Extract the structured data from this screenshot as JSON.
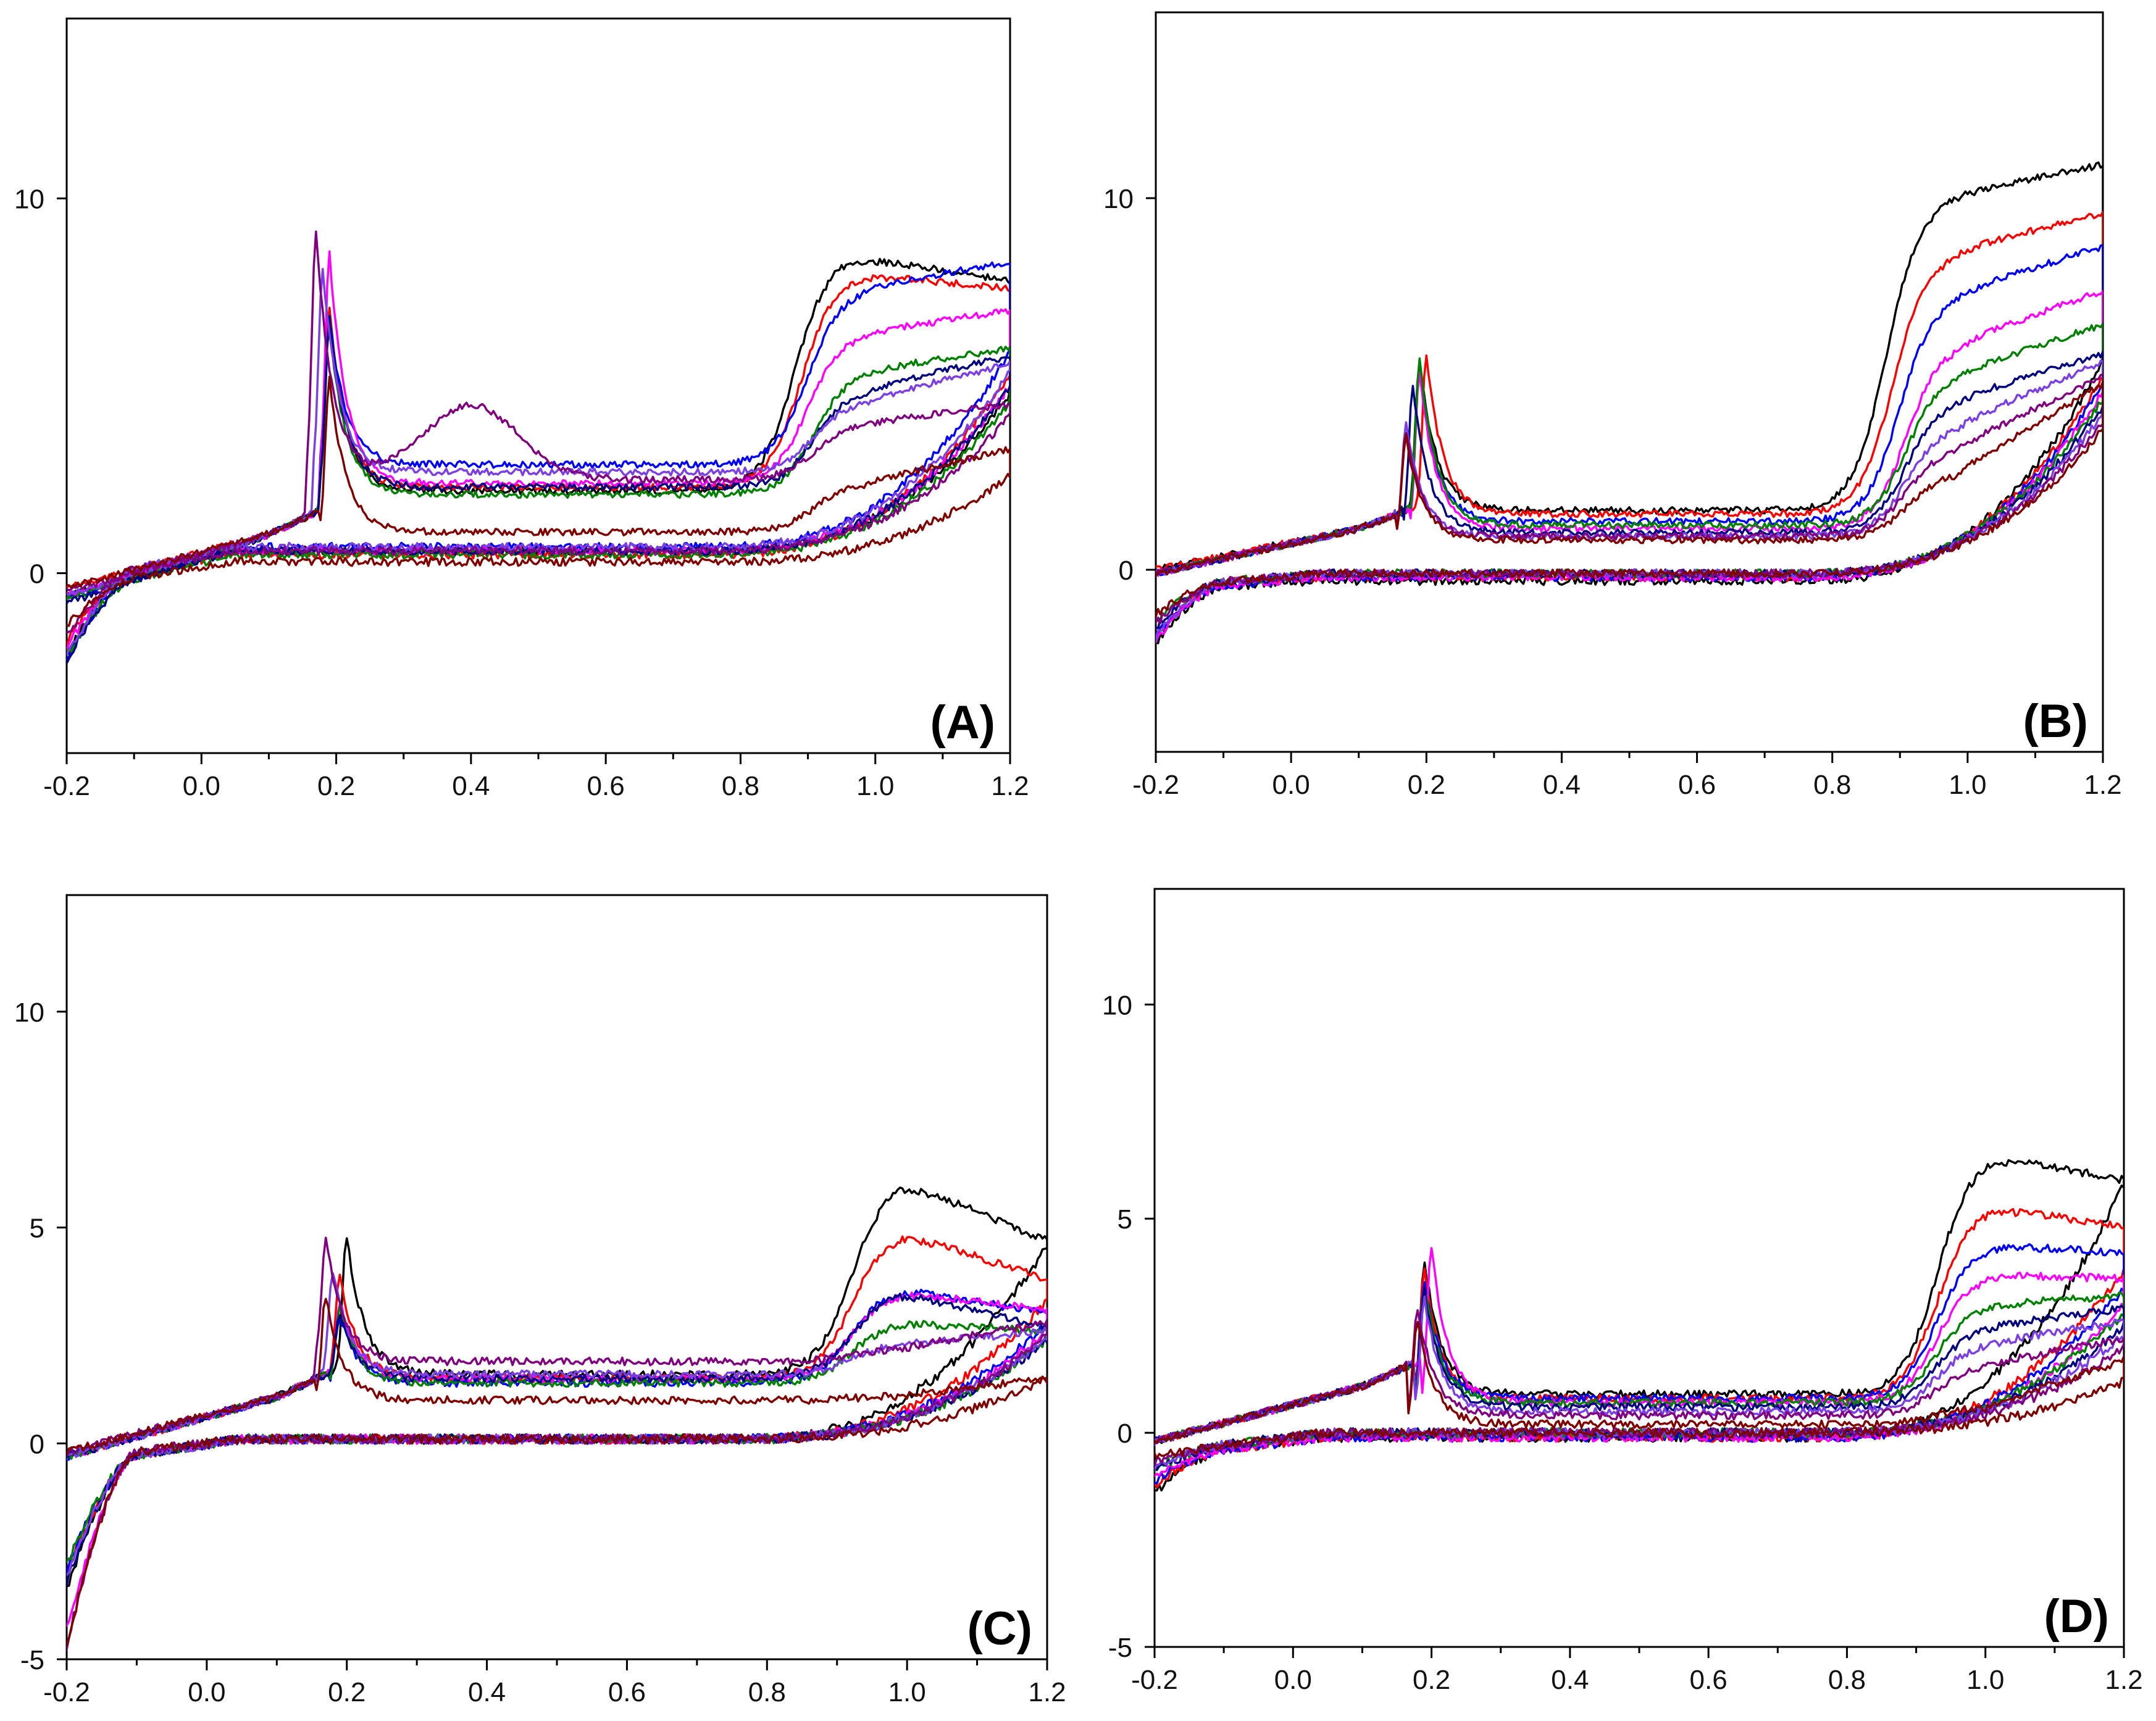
{
  "chart_data": [
    {
      "type": "line",
      "label": "(A)",
      "x_ticks": [
        "-0.2",
        "0.0",
        "0.2",
        "0.4",
        "0.6",
        "0.8",
        "1.0",
        "1.2"
      ],
      "y_ticks": [
        "0",
        "10"
      ],
      "xlim": [
        -0.2,
        1.2
      ],
      "ylim": [
        -4.8,
        14.8
      ],
      "series": [
        {
          "name": "black",
          "color": "#000000",
          "peak1": [
            0.19,
            7.0
          ],
          "floor": 2.2,
          "peak2": [
            0.95,
            8.5
          ],
          "end_fwd": 7.8,
          "end_rev": 4.8,
          "rev_mid": 0.6,
          "start_val": -0.6,
          "low": -2.6
        },
        {
          "name": "red",
          "color": "#ff0000",
          "peak1": [
            0.19,
            7.0
          ],
          "floor": 2.3,
          "peak2": [
            0.96,
            8.0
          ],
          "end_fwd": 7.6,
          "end_rev": 5.3,
          "rev_mid": 0.5,
          "start_val": -0.4,
          "low": -2.2
        },
        {
          "name": "blue",
          "color": "#0000ff",
          "peak1": [
            0.19,
            6.8
          ],
          "floor": 2.9,
          "peak2": [
            0.97,
            7.6
          ],
          "end_fwd": 8.3,
          "end_rev": 5.9,
          "rev_mid": 0.7,
          "start_val": -0.7,
          "low": -2.9
        },
        {
          "name": "magenta",
          "color": "#ff00ff",
          "peak1": [
            0.19,
            8.5
          ],
          "floor": 2.4,
          "peak2": [
            0.97,
            6.4
          ],
          "end_fwd": 7.0,
          "end_rev": 5.0,
          "rev_mid": 0.6,
          "start_val": -0.6,
          "low": -2.4
        },
        {
          "name": "green",
          "color": "#008000",
          "peak1": [
            0.19,
            6.6
          ],
          "floor": 2.1,
          "peak2": [
            0.98,
            5.4
          ],
          "end_fwd": 6.0,
          "end_rev": 4.6,
          "rev_mid": 0.5,
          "start_val": -0.7,
          "low": -2.5
        },
        {
          "name": "navy",
          "color": "#000080",
          "peak1": [
            0.19,
            6.8
          ],
          "floor": 2.3,
          "peak2": [
            0.98,
            4.9
          ],
          "end_fwd": 5.8,
          "end_rev": 5.0,
          "rev_mid": 0.6,
          "start_val": -0.8,
          "low": -2.7
        },
        {
          "name": "blue-violet",
          "color": "#7b3fe4",
          "peak1": [
            0.18,
            8.1
          ],
          "floor": 2.7,
          "peak2": [
            0.98,
            4.6
          ],
          "end_fwd": 5.6,
          "end_rev": 5.4,
          "rev_mid": 0.7,
          "start_val": -0.6,
          "low": -2.8
        },
        {
          "name": "purple",
          "color": "#800080",
          "peak1": [
            0.17,
            9.1
          ],
          "floor": 2.5,
          "hump": [
            0.4,
            4.5
          ],
          "peak2": [
            0.98,
            4.0
          ],
          "end_fwd": 4.5,
          "end_rev": 4.2,
          "rev_mid": 0.6,
          "start_val": -0.5,
          "low": -2.1
        },
        {
          "name": "maroon",
          "color": "#800000",
          "peak1": [
            0.19,
            5.2
          ],
          "floor": 1.1,
          "peak2": [
            0.98,
            2.4
          ],
          "end_fwd": 3.3,
          "end_rev": 2.6,
          "rev_mid": 0.3,
          "start_val": -0.4,
          "low": -1.5
        }
      ]
    },
    {
      "type": "line",
      "label": "(B)",
      "x_ticks": [
        "-0.2",
        "0.0",
        "0.2",
        "0.4",
        "0.6",
        "0.8",
        "1.0",
        "1.2"
      ],
      "y_ticks": [
        "0",
        "10"
      ],
      "xlim": [
        -0.2,
        1.2
      ],
      "ylim": [
        -4.9,
        15.0
      ],
      "series": [
        {
          "name": "black",
          "color": "#000000",
          "peak1": [
            0.19,
            5.6
          ],
          "floor": 1.6,
          "peak2": [
            0.95,
            10.0
          ],
          "end_fwd": 10.9,
          "end_rev": 5.6,
          "rev_mid": -0.3,
          "start_val": 0.0,
          "low": -1.6
        },
        {
          "name": "red",
          "color": "#ff0000",
          "peak1": [
            0.2,
            5.8
          ],
          "floor": 1.5,
          "peak2": [
            0.96,
            8.5
          ],
          "end_fwd": 9.6,
          "end_rev": 5.2,
          "rev_mid": -0.2,
          "start_val": 0.0,
          "low": -1.5
        },
        {
          "name": "blue",
          "color": "#0000ff",
          "peak1": [
            0.19,
            5.4
          ],
          "floor": 1.3,
          "peak2": [
            0.97,
            7.4
          ],
          "end_fwd": 8.7,
          "end_rev": 5.0,
          "rev_mid": -0.2,
          "start_val": -0.1,
          "low": -1.4
        },
        {
          "name": "magenta",
          "color": "#ff00ff",
          "peak1": [
            0.19,
            5.3
          ],
          "floor": 1.1,
          "peak2": [
            0.98,
            6.1
          ],
          "end_fwd": 7.5,
          "end_rev": 4.8,
          "rev_mid": -0.2,
          "start_val": -0.1,
          "low": -1.6
        },
        {
          "name": "green",
          "color": "#008000",
          "peak1": [
            0.19,
            5.7
          ],
          "floor": 1.2,
          "peak2": [
            0.98,
            5.3
          ],
          "end_fwd": 6.6,
          "end_rev": 4.6,
          "rev_mid": -0.1,
          "start_val": -0.1,
          "low": -1.1
        },
        {
          "name": "navy",
          "color": "#000080",
          "peak1": [
            0.18,
            4.9
          ],
          "floor": 1.0,
          "peak2": [
            0.98,
            4.6
          ],
          "end_fwd": 5.8,
          "end_rev": 4.4,
          "rev_mid": -0.1,
          "start_val": -0.1,
          "low": -1.3
        },
        {
          "name": "blue-violet",
          "color": "#7b3fe4",
          "peak1": [
            0.17,
            3.9
          ],
          "floor": 0.9,
          "peak2": [
            0.98,
            3.9
          ],
          "end_fwd": 5.6,
          "end_rev": 4.2,
          "rev_mid": -0.1,
          "start_val": -0.1,
          "low": -1.6
        },
        {
          "name": "purple",
          "color": "#800080",
          "peak1": [
            0.17,
            3.7
          ],
          "floor": 0.9,
          "peak2": [
            0.98,
            3.3
          ],
          "end_fwd": 5.2,
          "end_rev": 4.0,
          "rev_mid": -0.1,
          "start_val": -0.1,
          "low": -1.2
        },
        {
          "name": "maroon",
          "color": "#800000",
          "peak1": [
            0.17,
            3.6
          ],
          "floor": 0.8,
          "peak2": [
            0.98,
            2.6
          ],
          "end_fwd": 5.0,
          "end_rev": 3.8,
          "rev_mid": -0.1,
          "start_val": -0.1,
          "low": -0.9
        }
      ]
    },
    {
      "type": "line",
      "label": "(C)",
      "x_ticks": [
        "-0.2",
        "0.0",
        "0.2",
        "0.4",
        "0.6",
        "0.8",
        "1.0",
        "1.2"
      ],
      "y_ticks": [
        "-5",
        "0",
        "5",
        "10"
      ],
      "xlim": [
        -0.2,
        1.2
      ],
      "ylim": [
        -5.0,
        12.7
      ],
      "series": [
        {
          "name": "black",
          "color": "#000000",
          "peak1": [
            0.2,
            4.8
          ],
          "floor": 1.6,
          "peak2": [
            0.99,
            6.1
          ],
          "end_fwd": 4.7,
          "end_rev": 4.6,
          "rev_mid": 0.1,
          "start_val": -0.3,
          "low": -3.5
        },
        {
          "name": "red",
          "color": "#ff0000",
          "peak1": [
            0.19,
            3.9
          ],
          "floor": 1.5,
          "peak2": [
            0.99,
            4.9
          ],
          "end_fwd": 3.8,
          "end_rev": 3.3,
          "rev_mid": 0.1,
          "start_val": -0.3,
          "low": -3.1
        },
        {
          "name": "blue",
          "color": "#0000ff",
          "peak1": [
            0.19,
            3.0
          ],
          "floor": 1.4,
          "peak2": [
            0.99,
            3.6
          ],
          "end_fwd": 3.0,
          "end_rev": 2.8,
          "rev_mid": 0.1,
          "start_val": -0.3,
          "low": -3.0
        },
        {
          "name": "magenta",
          "color": "#ff00ff",
          "peak1": [
            0.19,
            3.3
          ],
          "floor": 1.5,
          "peak2": [
            0.99,
            3.5
          ],
          "end_fwd": 3.1,
          "end_rev": 2.6,
          "rev_mid": 0.1,
          "start_val": -0.3,
          "low": -4.5
        },
        {
          "name": "green",
          "color": "#008000",
          "peak1": [
            0.19,
            3.2
          ],
          "floor": 1.4,
          "peak2": [
            0.99,
            2.8
          ],
          "end_fwd": 2.6,
          "end_rev": 2.4,
          "rev_mid": 0.1,
          "start_val": -0.3,
          "low": -2.9
        },
        {
          "name": "navy",
          "color": "#000080",
          "peak1": [
            0.19,
            3.0
          ],
          "floor": 1.5,
          "peak2": [
            0.99,
            3.5
          ],
          "end_fwd": 2.7,
          "end_rev": 2.4,
          "rev_mid": 0.1,
          "start_val": -0.3,
          "low": -3.3
        },
        {
          "name": "blue-violet",
          "color": "#7b3fe4",
          "peak1": [
            0.18,
            4.0
          ],
          "floor": 1.6,
          "peak2": [
            0.99,
            2.3
          ],
          "end_fwd": 2.6,
          "end_rev": 2.5,
          "rev_mid": 0.1,
          "start_val": -0.3,
          "low": -3.2
        },
        {
          "name": "purple",
          "color": "#800080",
          "peak1": [
            0.17,
            4.8
          ],
          "floor": 1.9,
          "peak2": [
            0.99,
            2.2
          ],
          "end_fwd": 2.8,
          "end_rev": 2.5,
          "rev_mid": 0.1,
          "start_val": -0.2,
          "low": -5.0
        },
        {
          "name": "maroon",
          "color": "#800000",
          "peak1": [
            0.17,
            3.4
          ],
          "floor": 1.0,
          "peak2": [
            0.99,
            1.1
          ],
          "end_fwd": 1.5,
          "end_rev": 1.5,
          "rev_mid": 0.1,
          "start_val": -0.2,
          "low": -5.0
        }
      ]
    },
    {
      "type": "line",
      "label": "(D)",
      "x_ticks": [
        "-0.2",
        "0.0",
        "0.2",
        "0.4",
        "0.6",
        "0.8",
        "1.0",
        "1.2"
      ],
      "y_ticks": [
        "-5",
        "0",
        "5",
        "10"
      ],
      "xlim": [
        -0.2,
        1.2
      ],
      "ylim": [
        -5.0,
        12.7
      ],
      "series": [
        {
          "name": "black",
          "color": "#000000",
          "peak1": [
            0.19,
            4.0
          ],
          "floor": 0.9,
          "peak2": [
            1.0,
            6.5
          ],
          "end_fwd": 5.9,
          "end_rev": 5.8,
          "rev_mid": -0.1,
          "start_val": -0.2,
          "low": -1.1
        },
        {
          "name": "red",
          "color": "#ff0000",
          "peak1": [
            0.19,
            3.8
          ],
          "floor": 0.8,
          "peak2": [
            1.0,
            5.3
          ],
          "end_fwd": 4.8,
          "end_rev": 3.8,
          "rev_mid": -0.1,
          "start_val": -0.2,
          "low": -0.9
        },
        {
          "name": "blue",
          "color": "#0000ff",
          "peak1": [
            0.19,
            3.5
          ],
          "floor": 0.8,
          "peak2": [
            1.0,
            4.4
          ],
          "end_fwd": 4.2,
          "end_rev": 3.4,
          "rev_mid": -0.1,
          "start_val": -0.2,
          "low": -0.8
        },
        {
          "name": "magenta",
          "color": "#ff00ff",
          "peak1": [
            0.2,
            4.3
          ],
          "floor": 0.7,
          "peak2": [
            1.0,
            3.7
          ],
          "end_fwd": 3.6,
          "end_rev": 3.0,
          "rev_mid": -0.1,
          "start_val": -0.2,
          "low": -0.7
        },
        {
          "name": "green",
          "color": "#008000",
          "peak1": [
            0.19,
            3.4
          ],
          "floor": 0.7,
          "peak2": [
            1.0,
            3.0
          ],
          "end_fwd": 3.2,
          "end_rev": 2.8,
          "rev_mid": 0.0,
          "start_val": -0.2,
          "low": -0.6
        },
        {
          "name": "navy",
          "color": "#000080",
          "peak1": [
            0.19,
            3.3
          ],
          "floor": 0.6,
          "peak2": [
            1.0,
            2.5
          ],
          "end_fwd": 2.9,
          "end_rev": 2.5,
          "rev_mid": 0.0,
          "start_val": -0.2,
          "low": -0.6
        },
        {
          "name": "blue-violet",
          "color": "#7b3fe4",
          "peak1": [
            0.19,
            3.1
          ],
          "floor": 0.5,
          "peak2": [
            1.0,
            2.1
          ],
          "end_fwd": 2.6,
          "end_rev": 2.3,
          "rev_mid": 0.0,
          "start_val": -0.2,
          "low": -0.5
        },
        {
          "name": "purple",
          "color": "#800080",
          "peak1": [
            0.18,
            2.9
          ],
          "floor": 0.4,
          "peak2": [
            1.0,
            1.6
          ],
          "end_fwd": 2.2,
          "end_rev": 2.0,
          "rev_mid": 0.0,
          "start_val": -0.2,
          "low": -0.4
        },
        {
          "name": "maroon",
          "color": "#800000",
          "peak1": [
            0.18,
            2.6
          ],
          "floor": 0.2,
          "peak2": [
            1.0,
            0.6
          ],
          "end_fwd": 1.7,
          "end_rev": 1.2,
          "rev_mid": 0.0,
          "start_val": -0.2,
          "low": -0.3
        }
      ]
    }
  ]
}
